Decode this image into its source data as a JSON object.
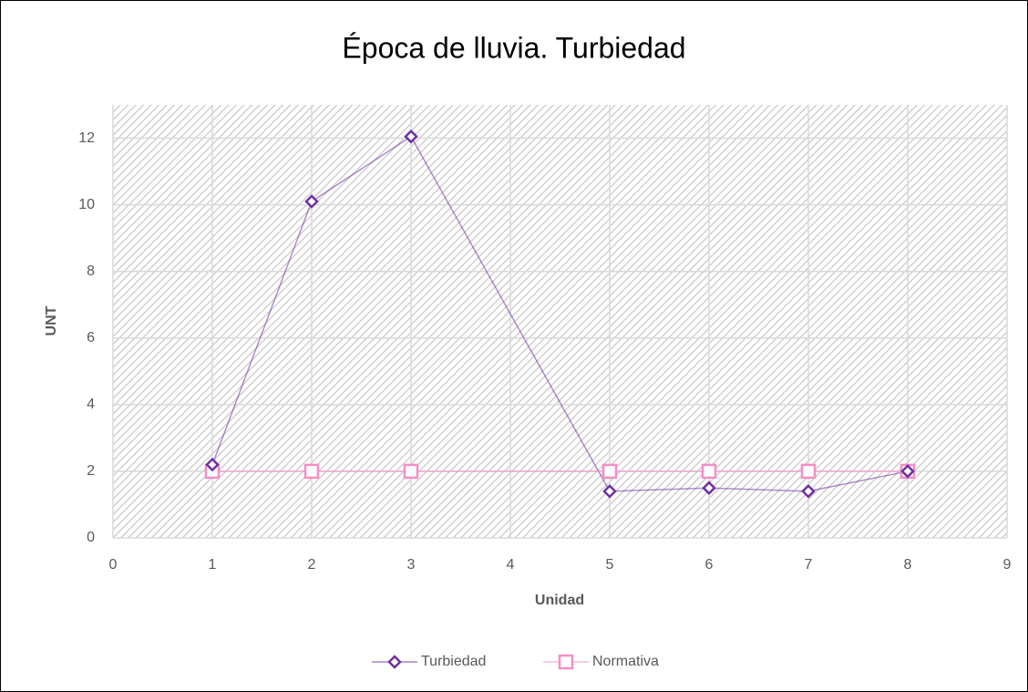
{
  "chart_data": {
    "type": "scatter",
    "title": "Época de lluvia. Turbiedad",
    "x_label": "Unidad",
    "y_label": "UNT",
    "series": [
      {
        "name": "Turbiedad",
        "color": "#7030a0",
        "x": [
          1,
          2,
          3,
          5,
          6,
          7,
          8
        ],
        "values": [
          2.2,
          10.1,
          12.05,
          1.4,
          1.5,
          1.4,
          2.0
        ]
      },
      {
        "name": "Normativa",
        "color": "#f48fc4",
        "x": [
          1,
          2,
          3,
          5,
          6,
          7,
          8
        ],
        "values": [
          2,
          2,
          2,
          2,
          2,
          2,
          2
        ]
      }
    ],
    "xlim": [
      0,
      9
    ],
    "xticks": [
      0,
      1,
      2,
      3,
      4,
      5,
      6,
      7,
      8,
      9
    ],
    "ylim": [
      0,
      13
    ],
    "yticks": [
      0,
      2,
      4,
      6,
      8,
      10,
      12
    ],
    "grid": true,
    "legend": "bottom"
  }
}
